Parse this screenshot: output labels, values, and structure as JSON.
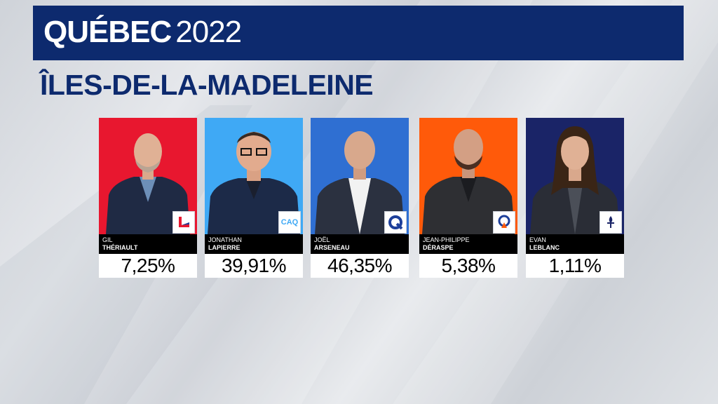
{
  "header": {
    "title_main": "QUÉBEC",
    "title_year": "2022",
    "banner_color": "#0d2a6e"
  },
  "riding": "ÎLES-DE-LA-MADELEINE",
  "candidates": [
    {
      "first": "GIL",
      "last": "THÉRIAULT",
      "percent": "7,25%",
      "bg": "#e8172f",
      "logo": "liberal-party-icon",
      "logo_text": ""
    },
    {
      "first": "JONATHAN",
      "last": "LAPIERRE",
      "percent": "39,91%",
      "bg": "#3fa9f5",
      "logo": "caq-party-icon",
      "logo_text": "CAQ"
    },
    {
      "first": "JOËL",
      "last": "ARSENEAU",
      "percent": "46,35%",
      "bg": "#2f6fd2",
      "logo": "pq-party-icon",
      "logo_text": ""
    },
    {
      "first": "JEAN-PHILIPPE",
      "last": "DÉRASPE",
      "percent": "5,38%",
      "bg": "#ff5a0a",
      "logo": "qs-party-icon",
      "logo_text": ""
    },
    {
      "first": "EVAN",
      "last": "LEBLANC",
      "percent": "1,11%",
      "bg": "#1a2467",
      "logo": "conservative-party-icon",
      "logo_text": ""
    }
  ]
}
